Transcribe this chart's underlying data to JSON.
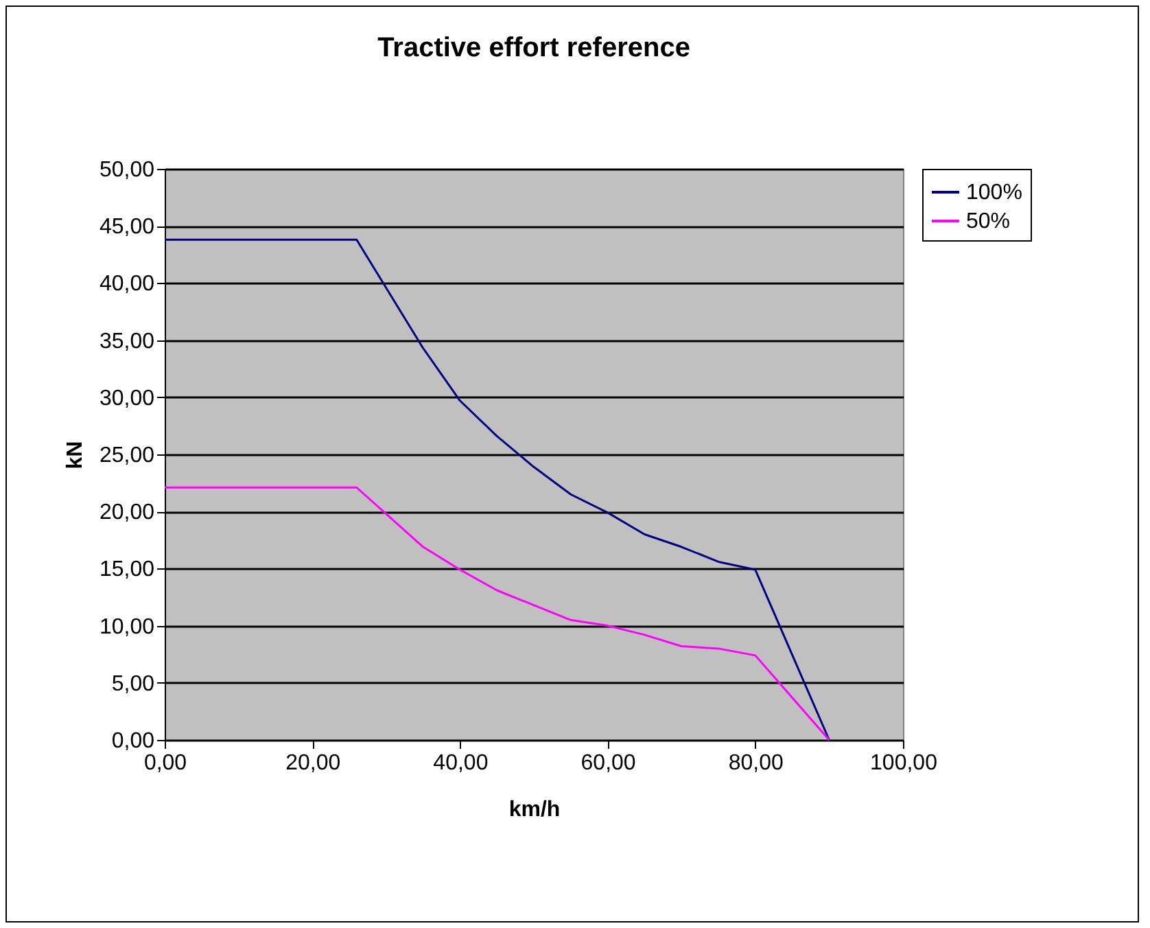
{
  "chart_data": {
    "type": "line",
    "title": "Tractive effort reference",
    "xlabel": "km/h",
    "ylabel": "kN",
    "x": [
      0,
      26,
      35,
      40,
      45,
      50,
      55,
      60,
      65,
      70,
      75,
      80,
      90
    ],
    "series": [
      {
        "name": "100%",
        "color": "#000080",
        "values": [
          43.8,
          43.8,
          34.3,
          29.7,
          26.6,
          23.9,
          21.5,
          19.9,
          18.0,
          16.9,
          15.6,
          14.9,
          0
        ]
      },
      {
        "name": "50%",
        "color": "#ff00ff",
        "values": [
          22.1,
          22.1,
          16.9,
          14.9,
          13.1,
          11.8,
          10.5,
          10.0,
          9.2,
          8.2,
          8.0,
          7.4,
          0
        ]
      }
    ],
    "xlim": [
      0,
      100
    ],
    "xticks": [
      {
        "value": 0,
        "label": "0,00"
      },
      {
        "value": 20,
        "label": "20,00"
      },
      {
        "value": 40,
        "label": "40,00"
      },
      {
        "value": 60,
        "label": "60,00"
      },
      {
        "value": 80,
        "label": "80,00"
      },
      {
        "value": 100,
        "label": "100,00"
      }
    ],
    "ylim": [
      0,
      50
    ],
    "yticks": [
      {
        "value": 0,
        "label": "0,00"
      },
      {
        "value": 5,
        "label": "5,00"
      },
      {
        "value": 10,
        "label": "10,00"
      },
      {
        "value": 15,
        "label": "15,00"
      },
      {
        "value": 20,
        "label": "20,00"
      },
      {
        "value": 25,
        "label": "25,00"
      },
      {
        "value": 30,
        "label": "30,00"
      },
      {
        "value": 35,
        "label": "35,00"
      },
      {
        "value": 40,
        "label": "40,00"
      },
      {
        "value": 45,
        "label": "45,00"
      },
      {
        "value": 50,
        "label": "50,00"
      }
    ],
    "grid": "y",
    "legend": "right",
    "marker": "none",
    "line_style": "solid"
  }
}
